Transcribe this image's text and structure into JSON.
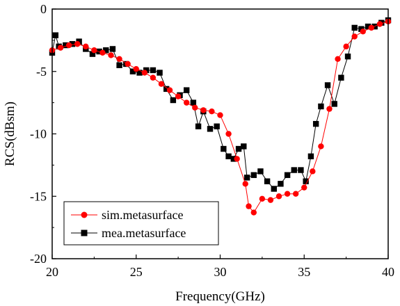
{
  "chart_data": {
    "type": "line",
    "xlabel": "Frequency(GHz)",
    "ylabel": "RCS(dBsm)",
    "xlim": [
      20,
      40
    ],
    "ylim": [
      -20,
      0
    ],
    "xticks": [
      "20",
      "25",
      "30",
      "35",
      "40"
    ],
    "yticks": [
      "0",
      "-5",
      "-10",
      "-15",
      "-20"
    ],
    "grid": false,
    "legend_position": "bottom-left",
    "series": [
      {
        "name": "sim.metasurface",
        "color": "#ff0000",
        "marker": "circle",
        "points": [
          [
            20.0,
            -3.3
          ],
          [
            20.5,
            -3.1
          ],
          [
            21.0,
            -2.9
          ],
          [
            21.5,
            -2.8
          ],
          [
            22.0,
            -3.0
          ],
          [
            22.5,
            -3.3
          ],
          [
            23.0,
            -3.5
          ],
          [
            23.5,
            -3.7
          ],
          [
            24.0,
            -4.0
          ],
          [
            24.5,
            -4.4
          ],
          [
            25.0,
            -4.8
          ],
          [
            25.5,
            -5.1
          ],
          [
            26.0,
            -5.5
          ],
          [
            26.5,
            -6.0
          ],
          [
            27.0,
            -6.5
          ],
          [
            27.5,
            -7.0
          ],
          [
            28.0,
            -7.5
          ],
          [
            28.5,
            -7.9
          ],
          [
            29.0,
            -8.1
          ],
          [
            29.5,
            -8.2
          ],
          [
            30.0,
            -8.5
          ],
          [
            30.5,
            -10.0
          ],
          [
            31.0,
            -12.0
          ],
          [
            31.5,
            -14.0
          ],
          [
            31.7,
            -15.8
          ],
          [
            32.0,
            -16.3
          ],
          [
            32.5,
            -15.2
          ],
          [
            33.0,
            -15.3
          ],
          [
            33.5,
            -15.0
          ],
          [
            34.0,
            -14.8
          ],
          [
            34.5,
            -14.8
          ],
          [
            35.0,
            -14.3
          ],
          [
            35.5,
            -13.0
          ],
          [
            36.0,
            -11.0
          ],
          [
            36.5,
            -8.0
          ],
          [
            37.0,
            -4.0
          ],
          [
            37.5,
            -3.0
          ],
          [
            38.0,
            -2.2
          ],
          [
            38.5,
            -1.8
          ],
          [
            39.0,
            -1.5
          ],
          [
            39.5,
            -1.2
          ],
          [
            40.0,
            -1.0
          ]
        ]
      },
      {
        "name": "mea.metasurface",
        "color": "#000000",
        "marker": "square",
        "points": [
          [
            20.0,
            -3.5
          ],
          [
            20.2,
            -2.1
          ],
          [
            20.4,
            -3.0
          ],
          [
            20.8,
            -2.9
          ],
          [
            21.2,
            -2.8
          ],
          [
            21.6,
            -2.6
          ],
          [
            22.0,
            -3.2
          ],
          [
            22.4,
            -3.6
          ],
          [
            22.8,
            -3.4
          ],
          [
            23.2,
            -3.3
          ],
          [
            23.6,
            -3.2
          ],
          [
            24.0,
            -4.5
          ],
          [
            24.4,
            -4.4
          ],
          [
            24.8,
            -5.0
          ],
          [
            25.2,
            -5.1
          ],
          [
            25.6,
            -4.9
          ],
          [
            26.0,
            -4.9
          ],
          [
            26.4,
            -5.1
          ],
          [
            26.8,
            -6.4
          ],
          [
            27.2,
            -7.3
          ],
          [
            27.6,
            -6.9
          ],
          [
            28.0,
            -6.5
          ],
          [
            28.4,
            -7.5
          ],
          [
            28.7,
            -9.4
          ],
          [
            29.0,
            -8.2
          ],
          [
            29.4,
            -9.6
          ],
          [
            29.8,
            -9.4
          ],
          [
            30.2,
            -11.2
          ],
          [
            30.5,
            -11.8
          ],
          [
            30.8,
            -12.0
          ],
          [
            31.1,
            -11.2
          ],
          [
            31.4,
            -11.0
          ],
          [
            31.6,
            -13.5
          ],
          [
            32.0,
            -13.3
          ],
          [
            32.4,
            -13.0
          ],
          [
            32.8,
            -13.8
          ],
          [
            33.2,
            -14.4
          ],
          [
            33.6,
            -14.0
          ],
          [
            34.0,
            -13.3
          ],
          [
            34.4,
            -12.9
          ],
          [
            34.8,
            -12.9
          ],
          [
            35.1,
            -13.8
          ],
          [
            35.4,
            -11.8
          ],
          [
            35.7,
            -9.2
          ],
          [
            36.0,
            -7.8
          ],
          [
            36.4,
            -6.1
          ],
          [
            36.8,
            -7.6
          ],
          [
            37.2,
            -5.5
          ],
          [
            37.6,
            -3.8
          ],
          [
            38.0,
            -1.5
          ],
          [
            38.4,
            -1.6
          ],
          [
            38.8,
            -1.4
          ],
          [
            39.2,
            -1.4
          ],
          [
            39.6,
            -1.1
          ],
          [
            40.0,
            -0.9
          ]
        ]
      }
    ]
  }
}
